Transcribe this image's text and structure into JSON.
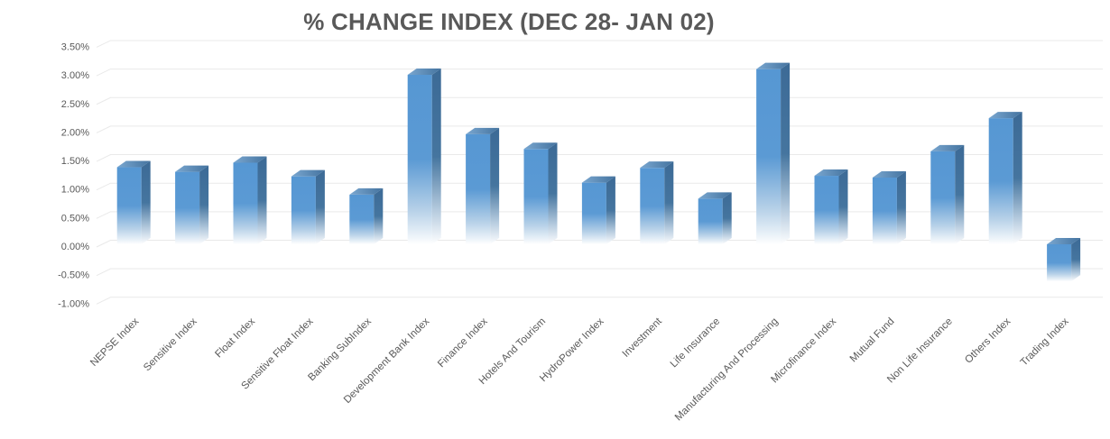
{
  "chart_data": {
    "type": "bar",
    "title": "% CHANGE INDEX (DEC 28- JAN 02)",
    "categories": [
      "NEPSE Index",
      "Sensitive Index",
      "Float Index",
      "Sensitive Float Index",
      "Banking SubIndex",
      "Development Bank Index",
      "Finance Index",
      "Hotels And Tourism",
      "HydroPower Index",
      "Investment",
      "Life Insurance",
      "Manufacturing And Processing",
      "Microfinance Index",
      "Mutual Fund",
      "Non Life Insurance",
      "Others Index",
      "Trading Index"
    ],
    "values": [
      1.35,
      1.27,
      1.43,
      1.19,
      0.87,
      2.97,
      1.93,
      1.67,
      1.08,
      1.34,
      0.8,
      3.07,
      1.2,
      1.17,
      1.63,
      2.21,
      -0.65
    ],
    "unit": "%",
    "xlabel": "",
    "ylabel": "",
    "ylim": [
      -1.0,
      3.5
    ],
    "ytick_step": 0.5,
    "ytick_labels": [
      "3.50%",
      "3.00%",
      "2.50%",
      "2.00%",
      "1.50%",
      "1.00%",
      "0.50%",
      "0.00%",
      "-0.50%",
      "-1.00%"
    ],
    "grid": true,
    "legend_position": "none",
    "bar_style": "3d-column-gradient-fade-to-white",
    "x_label_rotation_deg": -45,
    "colors": {
      "bar_front": "#5697d3",
      "bar_side": "#3c6a96",
      "bar_top_light": "#7aa7d0",
      "bar_top_dark": "#44739f",
      "gridline": "#e9e9e9",
      "axis_text": "#595959",
      "title_text": "#595959",
      "background": "#ffffff"
    }
  }
}
